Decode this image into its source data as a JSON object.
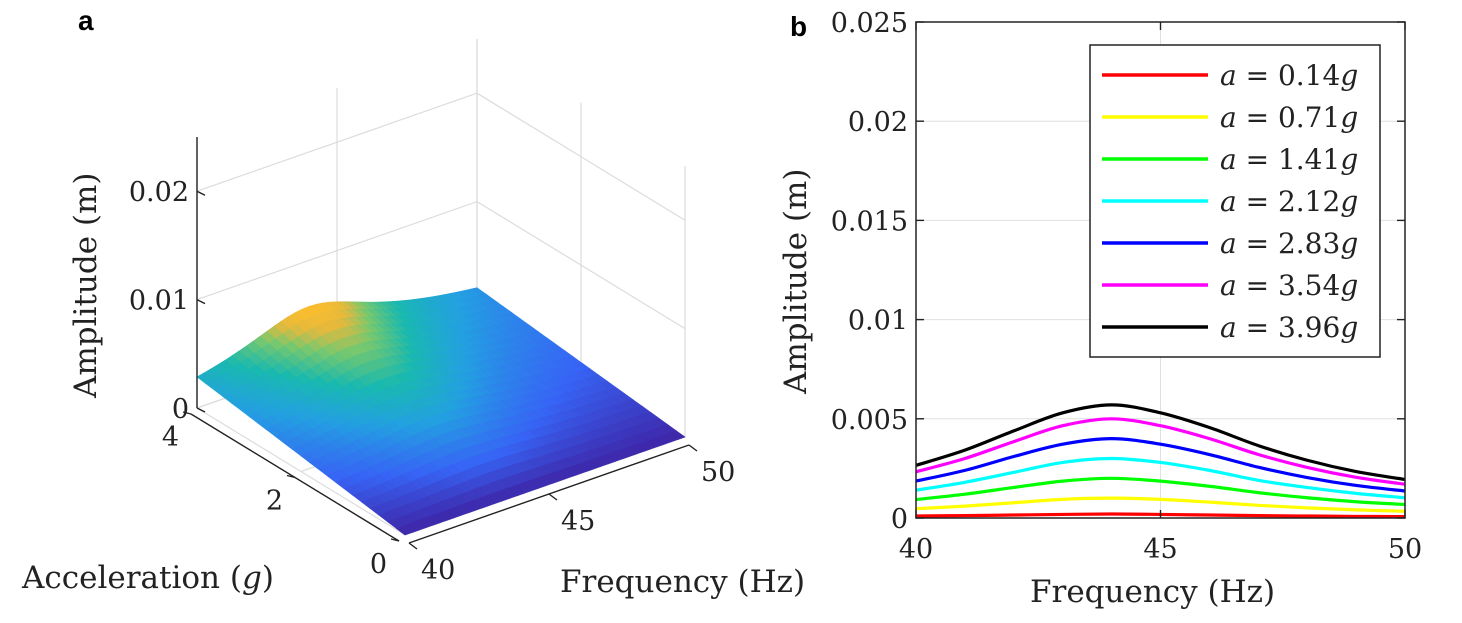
{
  "panels": {
    "left_label": "a",
    "right_label": "b"
  },
  "colors": {
    "series": [
      "#ff0000",
      "#ffff00",
      "#00ff00",
      "#00ffff",
      "#0000ff",
      "#ff00ff",
      "#000000"
    ],
    "surface_low": "#3e26a8",
    "surface_mid": "#1fb4c6",
    "surface_high": "#fbb634"
  },
  "chart_data": [
    {
      "type": "surface",
      "zlabel": "Amplitude (m)",
      "xlabel_text": "Frequency (Hz)",
      "ylabel_text": "Acceleration (",
      "ylabel_var": "g",
      "ylabel_close": ")",
      "x_ticks": [
        "40",
        "45",
        "50"
      ],
      "y_ticks": [
        "0",
        "2",
        "4"
      ],
      "z_ticks": [
        "0",
        "0.01",
        "0.02"
      ],
      "xlim": [
        40,
        50
      ],
      "ylim": [
        0,
        4
      ],
      "zlim": [
        0,
        0.025
      ],
      "resonance_freq": 44,
      "peak_amplitude": 0.0057,
      "grid": true
    },
    {
      "type": "line",
      "xlabel": "Frequency (Hz)",
      "ylabel": "Amplitude (m)",
      "xlim": [
        40,
        50
      ],
      "ylim": [
        0,
        0.025
      ],
      "x_ticks": [
        "40",
        "45",
        "50"
      ],
      "y_ticks": [
        "0",
        "0.005",
        "0.01",
        "0.015",
        "0.02",
        "0.025"
      ],
      "grid": true,
      "legend_position": "top-right",
      "x": [
        40,
        41,
        42,
        43,
        44,
        45,
        46,
        47,
        48,
        49,
        50
      ],
      "series": [
        {
          "name_var": "a",
          "name_eq": " = 0.14",
          "name_unit": "g",
          "color": "#ff0000",
          "values": [
            0.0001,
            0.00012,
            0.00015,
            0.00018,
            0.0002,
            0.00018,
            0.00015,
            0.00012,
            0.0001,
            8e-05,
            7e-05
          ]
        },
        {
          "name_var": "a",
          "name_eq": " = 0.71",
          "name_unit": "g",
          "color": "#ffff00",
          "values": [
            0.00047,
            0.0006,
            0.00077,
            0.00094,
            0.001,
            0.00094,
            0.0008,
            0.00064,
            0.00051,
            0.00041,
            0.00034
          ]
        },
        {
          "name_var": "a",
          "name_eq": " = 1.41",
          "name_unit": "g",
          "color": "#00ff00",
          "values": [
            0.00093,
            0.0012,
            0.00154,
            0.00186,
            0.002,
            0.00186,
            0.0016,
            0.00128,
            0.00102,
            0.00082,
            0.00068
          ]
        },
        {
          "name_var": "a",
          "name_eq": " = 2.12",
          "name_unit": "g",
          "color": "#00ffff",
          "values": [
            0.0014,
            0.0018,
            0.0023,
            0.0028,
            0.003,
            0.0028,
            0.0024,
            0.0019,
            0.00154,
            0.00124,
            0.00102
          ]
        },
        {
          "name_var": "a",
          "name_eq": " = 2.83",
          "name_unit": "g",
          "color": "#0000ff",
          "values": [
            0.00186,
            0.0024,
            0.0031,
            0.00372,
            0.004,
            0.00372,
            0.0032,
            0.00256,
            0.00204,
            0.00164,
            0.00136
          ]
        },
        {
          "name_var": "a",
          "name_eq": " = 3.54",
          "name_unit": "g",
          "color": "#ff00ff",
          "values": [
            0.00233,
            0.003,
            0.00385,
            0.00465,
            0.005,
            0.00465,
            0.004,
            0.0032,
            0.00255,
            0.00205,
            0.0017
          ]
        },
        {
          "name_var": "a",
          "name_eq": " = 3.96",
          "name_unit": "g",
          "color": "#000000",
          "values": [
            0.00265,
            0.00342,
            0.00439,
            0.0053,
            0.0057,
            0.0053,
            0.00456,
            0.00365,
            0.00291,
            0.00234,
            0.00194
          ]
        }
      ]
    }
  ]
}
